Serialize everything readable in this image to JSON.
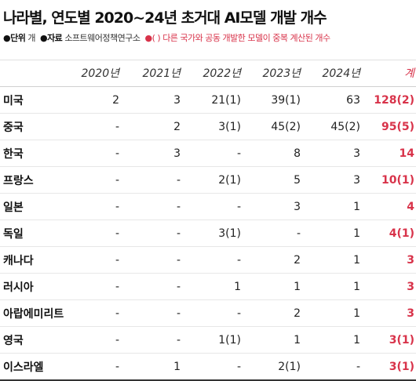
{
  "title": "나라별, 연도별 2020~24년 초거대 AI모델 개발 개수",
  "meta": {
    "unit_key": "●단위",
    "unit_value": "개",
    "source_key": "●자료",
    "source_value": "소프트웨어정책연구소",
    "note": "●(  ) 다른 국가와 공동 개발한 모델이 중복 계산된 개수"
  },
  "colors": {
    "accent": "#d8334a"
  },
  "table": {
    "headers": [
      "",
      "2020년",
      "2021년",
      "2022년",
      "2023년",
      "2024년",
      "계"
    ],
    "rows": [
      [
        "미국",
        "2",
        "3",
        "21(1)",
        "39(1)",
        "63",
        "128(2)"
      ],
      [
        "중국",
        "-",
        "2",
        "3(1)",
        "45(2)",
        "45(2)",
        "95(5)"
      ],
      [
        "한국",
        "-",
        "3",
        "-",
        "8",
        "3",
        "14"
      ],
      [
        "프랑스",
        "-",
        "-",
        "2(1)",
        "5",
        "3",
        "10(1)"
      ],
      [
        "일본",
        "-",
        "-",
        "-",
        "3",
        "1",
        "4"
      ],
      [
        "독일",
        "-",
        "-",
        "3(1)",
        "-",
        "1",
        "4(1)"
      ],
      [
        "캐나다",
        "-",
        "-",
        "-",
        "2",
        "1",
        "3"
      ],
      [
        "러시아",
        "-",
        "-",
        "1",
        "1",
        "1",
        "3"
      ],
      [
        "아랍에미리트",
        "-",
        "-",
        "-",
        "2",
        "1",
        "3"
      ],
      [
        "영국",
        "-",
        "-",
        "1(1)",
        "1",
        "1",
        "3(1)"
      ],
      [
        "이스라엘",
        "-",
        "1",
        "-",
        "2(1)",
        "-",
        "3(1)"
      ]
    ]
  }
}
